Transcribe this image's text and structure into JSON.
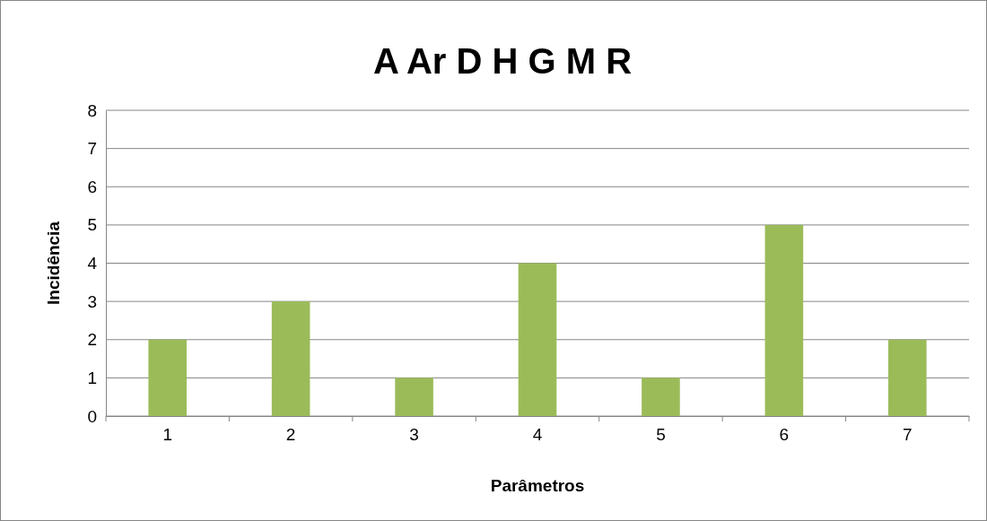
{
  "chart_data": {
    "type": "bar",
    "title": "A Ar D H G M R",
    "xlabel": "Parâmetros",
    "ylabel": "Incidência",
    "categories": [
      "1",
      "2",
      "3",
      "4",
      "5",
      "6",
      "7"
    ],
    "values": [
      2,
      3,
      1,
      4,
      1,
      5,
      2
    ],
    "color": "#9bbb59",
    "ylim": [
      0,
      8
    ],
    "yticks": [
      0,
      1,
      2,
      3,
      4,
      5,
      6,
      7,
      8
    ],
    "grid": "y",
    "legend": false
  }
}
